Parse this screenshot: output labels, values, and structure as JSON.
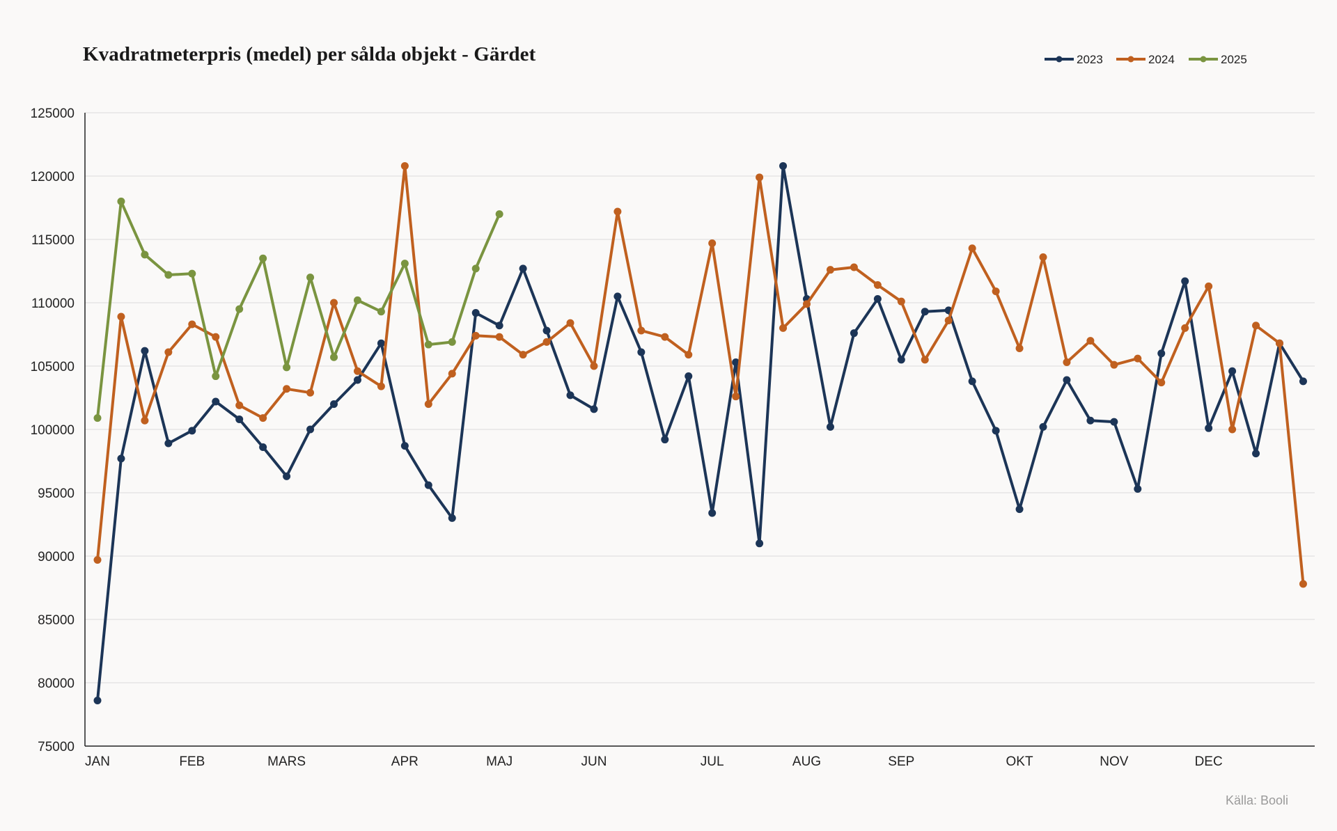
{
  "source": "Källa: Booli",
  "chart_data": {
    "type": "line",
    "title": "Kvadratmeterpris (medel) per sålda objekt - Gärdet",
    "xlabel": "",
    "ylabel": "",
    "ylim": [
      75000,
      125000
    ],
    "yticks": [
      75000,
      80000,
      85000,
      90000,
      95000,
      100000,
      105000,
      110000,
      115000,
      120000,
      125000
    ],
    "grid": true,
    "legend_position": "top-right",
    "month_ticks": [
      {
        "label": "JAN",
        "index": 0
      },
      {
        "label": "FEB",
        "index": 4
      },
      {
        "label": "MARS",
        "index": 8
      },
      {
        "label": "APR",
        "index": 13
      },
      {
        "label": "MAJ",
        "index": 17
      },
      {
        "label": "JUN",
        "index": 21
      },
      {
        "label": "JUL",
        "index": 26
      },
      {
        "label": "AUG",
        "index": 30
      },
      {
        "label": "SEP",
        "index": 34
      },
      {
        "label": "OKT",
        "index": 39
      },
      {
        "label": "NOV",
        "index": 43
      },
      {
        "label": "DEC",
        "index": 47
      }
    ],
    "x_count": 53,
    "series": [
      {
        "name": "2023",
        "color": "#1c3557",
        "values": [
          78600,
          97700,
          106200,
          98900,
          99900,
          102200,
          100800,
          98600,
          96300,
          100000,
          102000,
          103900,
          106800,
          98700,
          95600,
          93000,
          109200,
          108200,
          112700,
          107800,
          102700,
          101600,
          110500,
          106100,
          99200,
          104200,
          93400,
          105300,
          91000,
          120800,
          110300,
          100200,
          107600,
          110300,
          105500,
          109300,
          109400,
          103800,
          99900,
          93700,
          100200,
          103900,
          100700,
          100600,
          95300,
          106000,
          111700,
          100100,
          104600,
          98100,
          106800,
          103800
        ]
      },
      {
        "name": "2024",
        "color": "#c0601f",
        "values": [
          89700,
          108900,
          100700,
          106100,
          108300,
          107300,
          101900,
          100900,
          103200,
          102900,
          110000,
          104600,
          103400,
          120800,
          102000,
          104400,
          107400,
          107300,
          105900,
          106900,
          108400,
          105000,
          117200,
          107800,
          107300,
          105900,
          114700,
          102600,
          119900,
          108000,
          109900,
          112600,
          112800,
          111400,
          110100,
          105500,
          108600,
          114300,
          110900,
          106400,
          113600,
          105300,
          107000,
          105100,
          105600,
          103700,
          108000,
          111300,
          100000,
          108200,
          106800,
          87800
        ]
      },
      {
        "name": "2025",
        "color": "#7a9440",
        "values": [
          100900,
          118000,
          113800,
          112200,
          112300,
          104200,
          109500,
          113500,
          104900,
          112000,
          105700,
          110200,
          109300,
          113100,
          106700,
          106900,
          112700,
          117000
        ]
      }
    ]
  }
}
